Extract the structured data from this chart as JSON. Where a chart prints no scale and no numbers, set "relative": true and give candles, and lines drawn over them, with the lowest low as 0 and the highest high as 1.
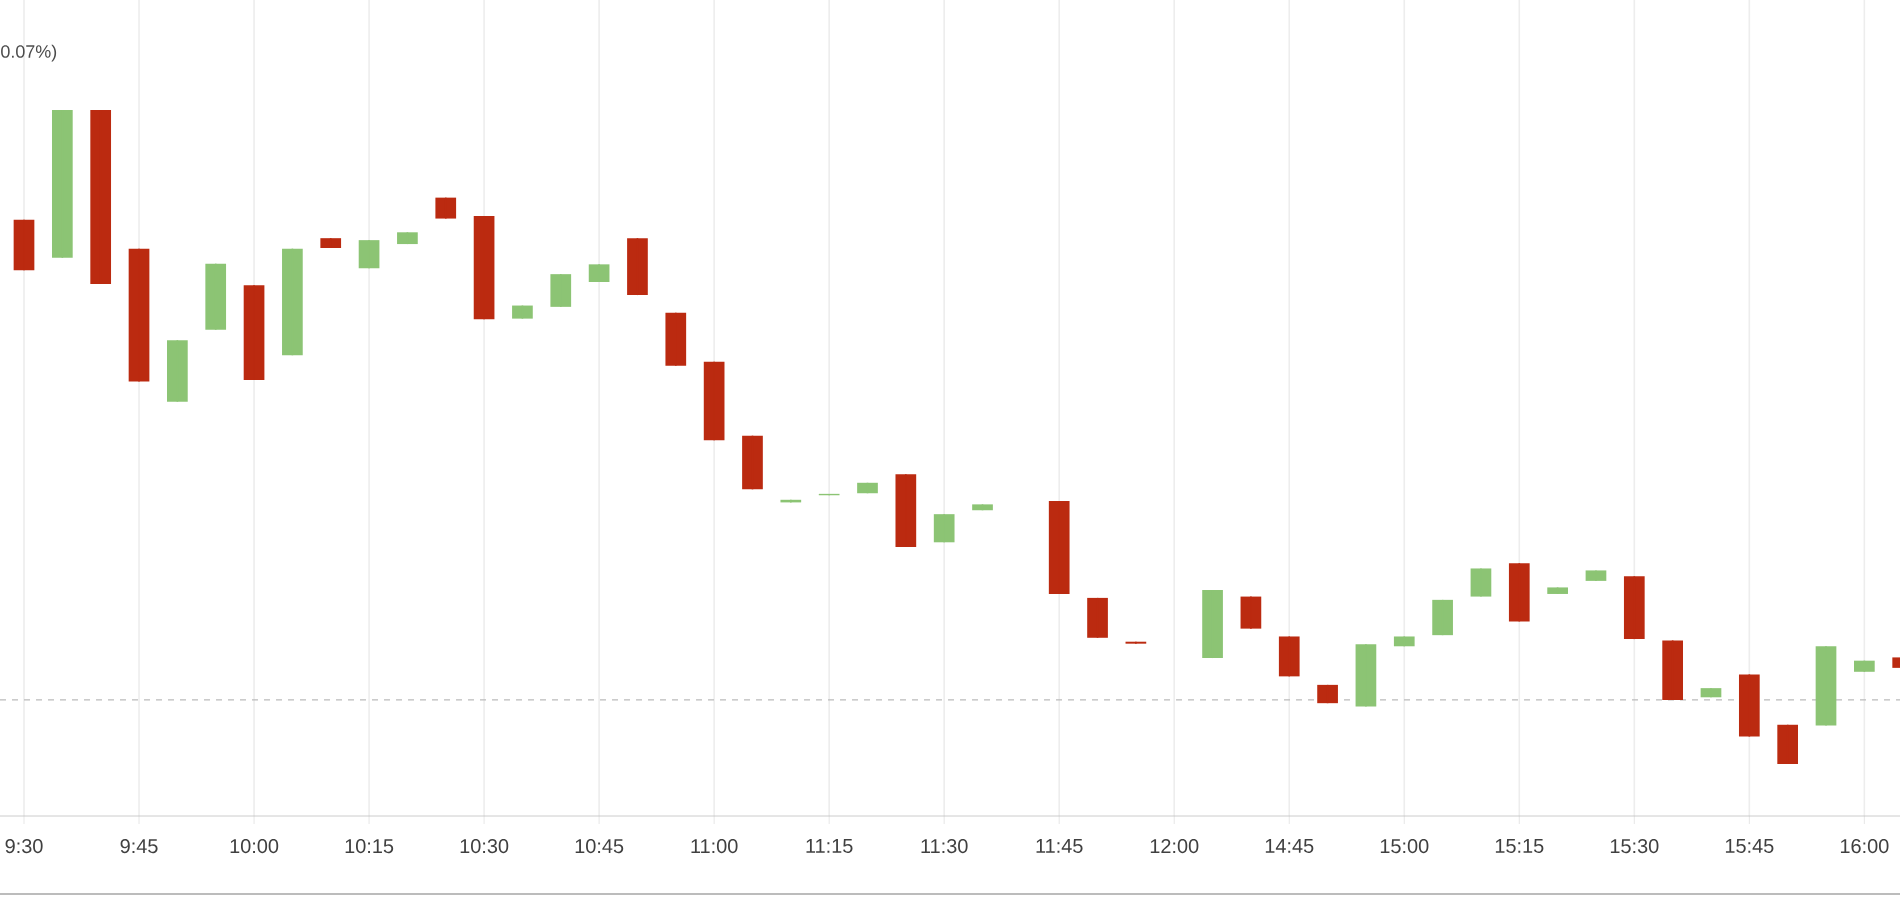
{
  "chart_data": {
    "type": "candlestick",
    "relative": true,
    "categories": [
      "9:30",
      null,
      null,
      "9:45",
      null,
      null,
      "10:00",
      null,
      null,
      "10:15",
      null,
      null,
      "10:30",
      null,
      null,
      "10:45",
      null,
      null,
      "11:00",
      null,
      null,
      "11:15",
      null,
      null,
      "11:30",
      null,
      null,
      "11:45",
      null,
      null,
      "12:00",
      null,
      null,
      "14:45",
      null,
      null,
      "15:00",
      null,
      null,
      "15:15",
      null,
      null,
      "15:30",
      null,
      null,
      "15:45",
      null,
      null,
      "16:00",
      null
    ],
    "ohlc": [
      [
        0.832,
        0.832,
        0.755,
        0.755
      ],
      [
        0.774,
        1.0,
        0.774,
        1.0
      ],
      [
        1.0,
        1.0,
        0.734,
        0.734
      ],
      [
        0.788,
        0.788,
        0.585,
        0.585
      ],
      [
        0.554,
        0.648,
        0.554,
        0.648
      ],
      [
        0.664,
        0.765,
        0.664,
        0.765
      ],
      [
        0.732,
        0.732,
        0.587,
        0.587
      ],
      [
        0.625,
        0.788,
        0.625,
        0.788
      ],
      [
        0.804,
        0.804,
        0.789,
        0.789
      ],
      [
        0.758,
        0.801,
        0.758,
        0.801
      ],
      [
        0.795,
        0.813,
        0.795,
        0.813
      ],
      [
        0.866,
        0.866,
        0.834,
        0.834
      ],
      [
        0.838,
        0.838,
        0.68,
        0.68
      ],
      [
        0.681,
        0.701,
        0.681,
        0.701
      ],
      [
        0.699,
        0.749,
        0.699,
        0.749
      ],
      [
        0.737,
        0.764,
        0.737,
        0.764
      ],
      [
        0.804,
        0.804,
        0.717,
        0.717
      ],
      [
        0.69,
        0.69,
        0.609,
        0.609
      ],
      [
        0.615,
        0.615,
        0.495,
        0.495
      ],
      [
        0.502,
        0.502,
        0.42,
        0.42
      ],
      [
        0.4,
        0.404,
        0.4,
        0.404
      ],
      [
        0.411,
        0.413,
        0.411,
        0.413
      ],
      [
        0.414,
        0.43,
        0.414,
        0.43
      ],
      [
        0.443,
        0.443,
        0.332,
        0.332
      ],
      [
        0.339,
        0.382,
        0.339,
        0.382
      ],
      [
        0.388,
        0.397,
        0.388,
        0.397
      ],
      null,
      [
        0.402,
        0.402,
        0.26,
        0.26
      ],
      [
        0.254,
        0.254,
        0.193,
        0.193
      ],
      [
        0.187,
        0.187,
        0.184,
        0.184
      ],
      null,
      [
        0.162,
        0.266,
        0.162,
        0.266
      ],
      [
        0.256,
        0.256,
        0.207,
        0.207
      ],
      [
        0.195,
        0.195,
        0.134,
        0.134
      ],
      [
        0.121,
        0.121,
        0.093,
        0.093
      ],
      [
        0.088,
        0.183,
        0.088,
        0.183
      ],
      [
        0.18,
        0.195,
        0.18,
        0.195
      ],
      [
        0.197,
        0.251,
        0.197,
        0.251
      ],
      [
        0.256,
        0.299,
        0.256,
        0.299
      ],
      [
        0.307,
        0.307,
        0.218,
        0.218
      ],
      [
        0.26,
        0.27,
        0.26,
        0.27
      ],
      [
        0.28,
        0.296,
        0.28,
        0.296
      ],
      [
        0.287,
        0.287,
        0.191,
        0.191
      ],
      [
        0.189,
        0.189,
        0.098,
        0.098
      ],
      [
        0.102,
        0.116,
        0.102,
        0.116
      ],
      [
        0.137,
        0.137,
        0.042,
        0.042
      ],
      [
        0.06,
        0.06,
        0.0,
        0.0
      ],
      [
        0.059,
        0.18,
        0.059,
        0.18
      ],
      [
        0.141,
        0.158,
        0.141,
        0.158
      ],
      [
        0.163,
        0.163,
        0.147,
        0.147
      ]
    ],
    "colors": [
      "#bb2a10",
      "#8cc474",
      "#bb2a10",
      "#bb2a10",
      "#8cc474",
      "#8cc474",
      "#bb2a10",
      "#8cc474",
      "#bb2a10",
      "#8cc474",
      "#8cc474",
      "#bb2a10",
      "#bb2a10",
      "#8cc474",
      "#8cc474",
      "#8cc474",
      "#bb2a10",
      "#bb2a10",
      "#bb2a10",
      "#bb2a10",
      "#8cc474",
      "#8cc474",
      "#8cc474",
      "#bb2a10",
      "#8cc474",
      "#8cc474",
      null,
      "#bb2a10",
      "#bb2a10",
      "#bb2a10",
      null,
      "#8cc474",
      "#bb2a10",
      "#bb2a10",
      "#bb2a10",
      "#8cc474",
      "#8cc474",
      "#8cc474",
      "#8cc474",
      "#bb2a10",
      "#8cc474",
      "#8cc474",
      "#bb2a10",
      "#bb2a10",
      "#8cc474",
      "#bb2a10",
      "#bb2a10",
      "#8cc474",
      "#8cc474",
      "#bb2a10"
    ],
    "grid": "x",
    "ref_lines": [
      {
        "axis": "y",
        "value": 0.098,
        "color": "#bbbbbb",
        "line_style": "dashed"
      }
    ],
    "annotations": [
      "0.07%)"
    ]
  }
}
